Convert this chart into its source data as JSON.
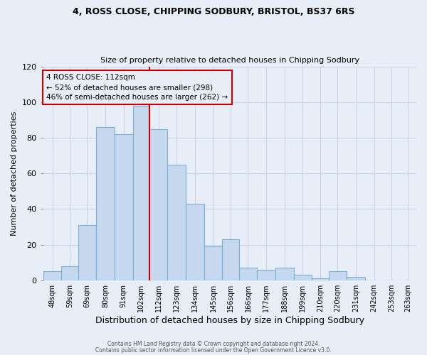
{
  "title": "4, ROSS CLOSE, CHIPPING SODBURY, BRISTOL, BS37 6RS",
  "subtitle": "Size of property relative to detached houses in Chipping Sodbury",
  "xlabel": "Distribution of detached houses by size in Chipping Sodbury",
  "ylabel": "Number of detached properties",
  "bin_labels": [
    "48sqm",
    "59sqm",
    "69sqm",
    "80sqm",
    "91sqm",
    "102sqm",
    "112sqm",
    "123sqm",
    "134sqm",
    "145sqm",
    "156sqm",
    "166sqm",
    "177sqm",
    "188sqm",
    "199sqm",
    "210sqm",
    "220sqm",
    "231sqm",
    "242sqm",
    "253sqm",
    "263sqm"
  ],
  "bin_edges": [
    48,
    59,
    69,
    80,
    91,
    102,
    112,
    123,
    134,
    145,
    156,
    166,
    177,
    188,
    199,
    210,
    220,
    231,
    242,
    253,
    263
  ],
  "bar_heights": [
    5,
    8,
    31,
    86,
    82,
    98,
    85,
    65,
    43,
    19,
    23,
    7,
    6,
    7,
    3,
    1,
    5,
    2,
    0,
    0,
    0
  ],
  "bar_color": "#c5d8ee",
  "bar_edge_color": "#7bafd4",
  "property_value": 112,
  "vline_color": "#cc0000",
  "annotation_line1": "4 ROSS CLOSE: 112sqm",
  "annotation_line2": "← 52% of detached houses are smaller (298)",
  "annotation_line3": "46% of semi-detached houses are larger (262) →",
  "annotation_box_edge_color": "#cc0000",
  "grid_color": "#c8d4e8",
  "background_color": "#e8eef8",
  "fig_background_color": "#e8eef8",
  "footer_line1": "Contains HM Land Registry data © Crown copyright and database right 2024.",
  "footer_line2": "Contains public sector information licensed under the Open Government Licence v3.0.",
  "ylim": [
    0,
    120
  ],
  "yticks": [
    0,
    20,
    40,
    60,
    80,
    100,
    120
  ]
}
